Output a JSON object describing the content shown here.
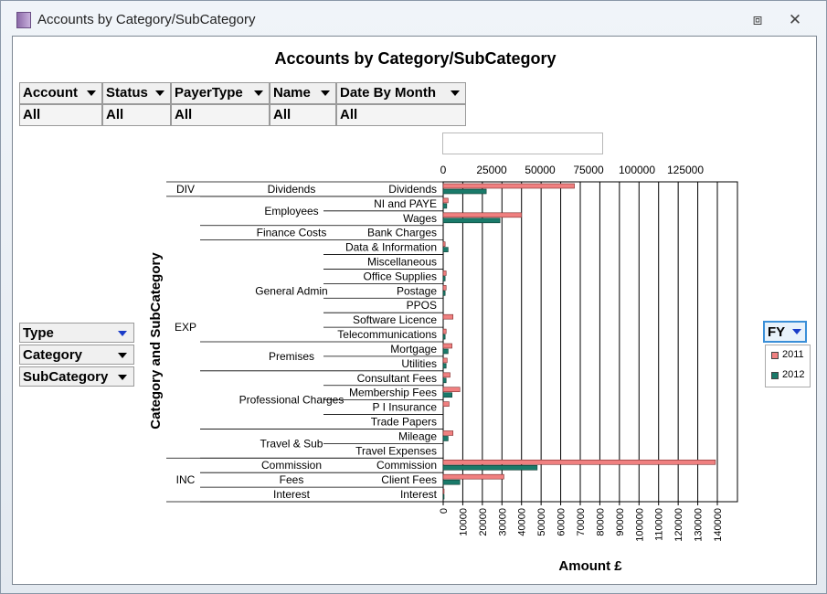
{
  "window": {
    "title": "Accounts by Category/SubCategory"
  },
  "chart_title": "Accounts by Category/SubCategory",
  "filters": [
    {
      "label": "Account",
      "value": "All"
    },
    {
      "label": "Status",
      "value": "All"
    },
    {
      "label": "PayerType",
      "value": "All"
    },
    {
      "label": "Name",
      "value": "All"
    },
    {
      "label": "Date By Month",
      "value": "All"
    }
  ],
  "row_fields": [
    {
      "label": "Type"
    },
    {
      "label": "Category"
    },
    {
      "label": "SubCategory"
    }
  ],
  "series_field": {
    "label": "FY"
  },
  "colors": {
    "2011": "#f08080",
    "2012": "#1a7a6a"
  },
  "chart_data": {
    "type": "bar",
    "orientation": "horizontal",
    "ylabel": "Category and SubCategory",
    "xlabel": "Amount £",
    "xlim": [
      0,
      150000
    ],
    "bottom_ticks": [
      "0",
      "10000",
      "20000",
      "30000",
      "40000",
      "50000",
      "60000",
      "70000",
      "80000",
      "90000",
      "100000",
      "110000",
      "120000",
      "130000",
      "140000"
    ],
    "top_ticks": [
      "0",
      "25000",
      "50000",
      "75000",
      "100000",
      "125000"
    ],
    "grid": true,
    "legend_position": "right",
    "types": [
      {
        "name": "DIV",
        "categories": [
          {
            "name": "Dividends",
            "subs": [
              "Dividends"
            ]
          }
        ]
      },
      {
        "name": "EXP",
        "categories": [
          {
            "name": "Employees",
            "subs": [
              "NI and PAYE",
              "Wages"
            ]
          },
          {
            "name": "Finance Costs",
            "subs": [
              "Bank Charges"
            ]
          },
          {
            "name": "General Admin",
            "subs": [
              "Data & Information",
              "Miscellaneous",
              "Office Supplies",
              "Postage",
              "PPOS",
              "Software Licence",
              "Telecommunications"
            ]
          },
          {
            "name": "Premises",
            "subs": [
              "Mortgage",
              "Utilities"
            ]
          },
          {
            "name": "Professional Charges",
            "subs": [
              "Consultant Fees",
              "Membership Fees",
              "P I Insurance",
              "Trade Papers"
            ]
          },
          {
            "name": "Travel & Sub",
            "subs": [
              "Mileage",
              "Travel Expenses"
            ]
          }
        ]
      },
      {
        "name": "INC",
        "categories": [
          {
            "name": "Commission",
            "subs": [
              "Commission"
            ]
          },
          {
            "name": "Fees",
            "subs": [
              "Client Fees"
            ]
          },
          {
            "name": "Interest",
            "subs": [
              "Interest"
            ]
          }
        ]
      }
    ],
    "series": [
      {
        "name": "2011",
        "values": [
          67000,
          2500,
          40000,
          0,
          1000,
          0,
          1500,
          1500,
          0,
          5000,
          1500,
          4500,
          2000,
          3500,
          8500,
          3000,
          0,
          5000,
          0,
          139000,
          31000,
          300
        ]
      },
      {
        "name": "2012",
        "values": [
          22000,
          1800,
          29000,
          0,
          2500,
          0,
          1000,
          1000,
          0,
          0,
          1000,
          2500,
          1500,
          1500,
          4500,
          0,
          0,
          2500,
          0,
          48000,
          8500,
          300
        ]
      }
    ]
  }
}
